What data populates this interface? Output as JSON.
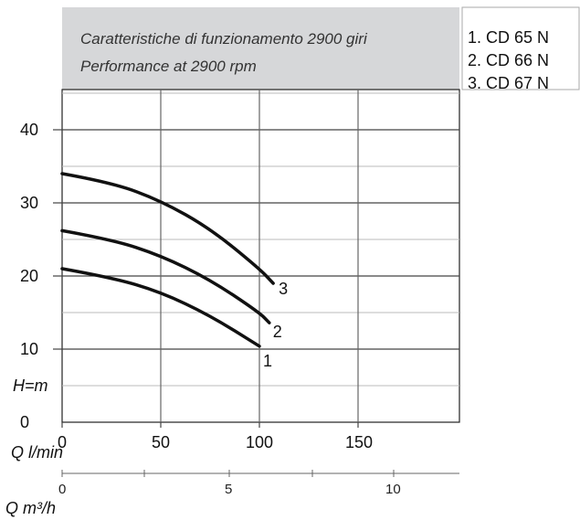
{
  "chart_data": {
    "type": "line",
    "title": "Caratteristiche di funzionamento 2900 giri",
    "subtitle": "Performance at 2900 rpm",
    "ylabel": "H=m",
    "xlabel": "Q l/min",
    "x2label": "Q m³/h",
    "xlim": [
      0,
      200
    ],
    "ylim": [
      0,
      45
    ],
    "x_ticks": [
      "0",
      "50",
      "100",
      "150"
    ],
    "y_ticks": [
      "0",
      "10",
      "20",
      "30",
      "40"
    ],
    "x2_ticks": [
      "0",
      "5",
      "10"
    ],
    "legend": [
      "1. CD 65 N",
      "2. CD 66 N",
      "3. CD 67 N"
    ],
    "legend_position": "top-right",
    "grid": true,
    "series": [
      {
        "label": "1",
        "x": [
          0,
          25,
          50,
          75,
          100
        ],
        "y": [
          21,
          19.8,
          17.8,
          14.6,
          10.4
        ]
      },
      {
        "label": "2",
        "x": [
          0,
          25,
          50,
          75,
          100,
          105
        ],
        "y": [
          26.2,
          25,
          22.8,
          19.5,
          15,
          13.6
        ]
      },
      {
        "label": "3",
        "x": [
          0,
          25,
          50,
          75,
          100,
          107
        ],
        "y": [
          34,
          32.8,
          30.3,
          26.5,
          21,
          19
        ]
      }
    ]
  }
}
